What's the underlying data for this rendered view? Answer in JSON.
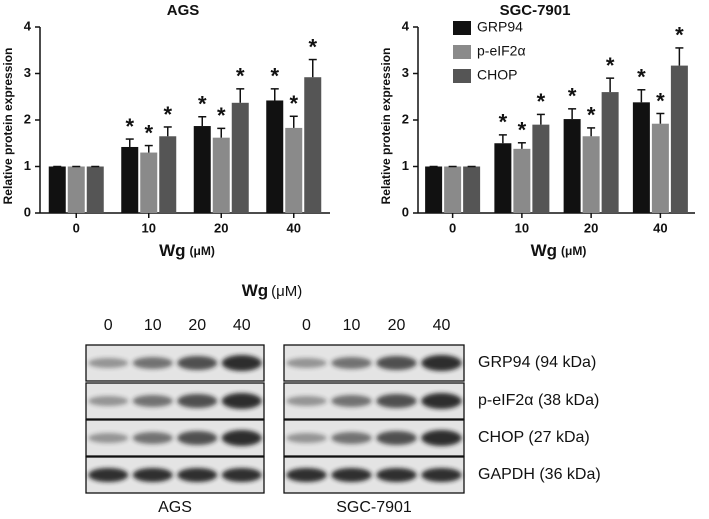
{
  "chart_data": [
    {
      "type": "bar",
      "title": "AGS",
      "ylabel": "Relative protein expression",
      "xlabel": "Wg",
      "xlabel_unit": "(μM)",
      "categories": [
        "0",
        "10",
        "20",
        "40"
      ],
      "ylim": [
        0,
        4
      ],
      "yticks": [
        0,
        1,
        2,
        3,
        4
      ],
      "series": [
        {
          "name": "GRP94",
          "color": "#111111",
          "values": [
            1,
            1.42,
            1.87,
            2.42
          ],
          "errors": [
            0,
            0.17,
            0.2,
            0.25
          ],
          "markers": [
            null,
            "*",
            "*",
            "*"
          ]
        },
        {
          "name": "p-eIF2α",
          "color": "#8a8a8a",
          "values": [
            1,
            1.3,
            1.62,
            1.83
          ],
          "errors": [
            0,
            0.15,
            0.2,
            0.25
          ],
          "markers": [
            null,
            "*",
            "*",
            "*"
          ]
        },
        {
          "name": "CHOP",
          "color": "#555555",
          "values": [
            1,
            1.65,
            2.37,
            2.92
          ],
          "errors": [
            0,
            0.2,
            0.3,
            0.38
          ],
          "markers": [
            null,
            "*",
            "*",
            "*"
          ]
        }
      ]
    },
    {
      "type": "bar",
      "title": "SGC-7901",
      "ylabel": "Relative protein expression",
      "xlabel": "Wg",
      "xlabel_unit": "(μM)",
      "categories": [
        "0",
        "10",
        "20",
        "40"
      ],
      "ylim": [
        0,
        4
      ],
      "yticks": [
        0,
        1,
        2,
        3,
        4
      ],
      "legend": "upper left",
      "series": [
        {
          "name": "GRP94",
          "color": "#111111",
          "values": [
            1,
            1.5,
            2.02,
            2.38
          ],
          "errors": [
            0,
            0.18,
            0.22,
            0.27
          ],
          "markers": [
            null,
            "*",
            "*",
            "*"
          ]
        },
        {
          "name": "p-eIF2α",
          "color": "#8a8a8a",
          "values": [
            1,
            1.38,
            1.65,
            1.92
          ],
          "errors": [
            0,
            0.13,
            0.18,
            0.22
          ],
          "markers": [
            null,
            "*",
            "*",
            "*"
          ]
        },
        {
          "name": "CHOP",
          "color": "#555555",
          "values": [
            1,
            1.9,
            2.6,
            3.17
          ],
          "errors": [
            0,
            0.22,
            0.3,
            0.38
          ],
          "markers": [
            null,
            "*",
            "*",
            "*"
          ]
        }
      ]
    }
  ],
  "blot": {
    "title": "Wg",
    "unit": "(μM)",
    "lanes": [
      "0",
      "10",
      "20",
      "40"
    ],
    "proteins": [
      "GRP94 (94 kDa)",
      "p-eIF2α (38 kDa)",
      "CHOP (27 kDa)",
      "GAPDH (36 kDa)"
    ],
    "cell_lines": [
      "AGS",
      "SGC-7901"
    ]
  }
}
